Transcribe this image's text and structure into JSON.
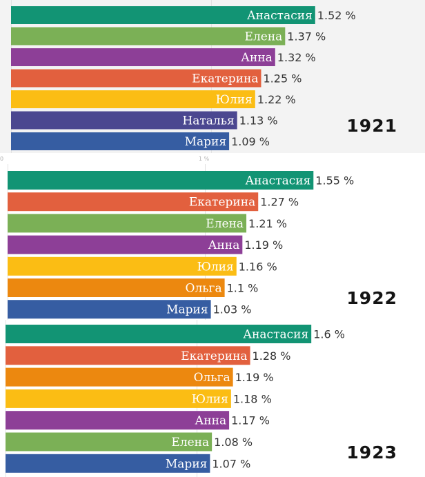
{
  "colors": {
    "Анастасия": "#129474",
    "Елена": "#7bb056",
    "Анна": "#8d3f97",
    "Екатерина": "#e2603e",
    "Юлия": "#fbbd14",
    "Наталья": "#4b4790",
    "Мария": "#365da2",
    "Ольга": "#ec880f"
  },
  "chart_data": [
    {
      "type": "bar",
      "orientation": "horizontal",
      "year": "1921",
      "unit": "%",
      "categories": [
        "Анастасия",
        "Елена",
        "Анна",
        "Екатерина",
        "Юлия",
        "Наталья",
        "Мария"
      ],
      "values": [
        1.52,
        1.37,
        1.32,
        1.25,
        1.22,
        1.13,
        1.09
      ],
      "value_labels": [
        "1.52 %",
        "1.37 %",
        "1.32 %",
        "1.25 %",
        "1.22 %",
        "1.13 %",
        "1.09 %"
      ]
    },
    {
      "type": "bar",
      "orientation": "horizontal",
      "year": "1922",
      "unit": "%",
      "categories": [
        "Анастасия",
        "Екатерина",
        "Елена",
        "Анна",
        "Юлия",
        "Ольга",
        "Мария"
      ],
      "values": [
        1.55,
        1.27,
        1.21,
        1.19,
        1.16,
        1.1,
        1.03
      ],
      "value_labels": [
        "1.55 %",
        "1.27 %",
        "1.21 %",
        "1.19 %",
        "1.16 %",
        "1.1 %",
        "1.03 %"
      ]
    },
    {
      "type": "bar",
      "orientation": "horizontal",
      "year": "1923",
      "unit": "%",
      "categories": [
        "Анастасия",
        "Екатерина",
        "Ольга",
        "Юлия",
        "Анна",
        "Елена",
        "Мария"
      ],
      "values": [
        1.6,
        1.28,
        1.19,
        1.18,
        1.17,
        1.08,
        1.07
      ],
      "value_labels": [
        "1.6 %",
        "1.28 %",
        "1.19 %",
        "1.18 %",
        "1.17 %",
        "1.08 %",
        "1.07 %"
      ]
    }
  ],
  "gap_ticks": [
    "0",
    "1 %"
  ]
}
